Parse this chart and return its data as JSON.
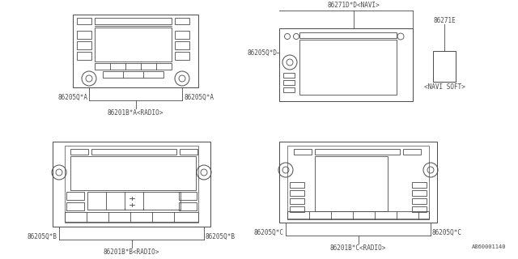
{
  "bg_color": "#ffffff",
  "line_color": "#4a4a4a",
  "text_color": "#4a4a4a",
  "diagram_id": "A860001140",
  "labels": {
    "radio_a_left": "86205Q*A",
    "radio_a_right": "86205Q*A",
    "radio_a_center": "86201B*A<RADIO>",
    "radio_b_left": "86205Q*B",
    "radio_b_right": "86205Q*B",
    "radio_b_center": "86201B*B<RADIO>",
    "radio_c_left": "86205Q*C",
    "radio_c_right": "86205Q*C",
    "radio_c_center": "86201B*C<RADIO>",
    "navi_top": "86271D*D<NAVI>",
    "navi_left": "86205Q*D",
    "navi_right": "86271E",
    "navi_soft": "<NAVI SOFT>"
  }
}
